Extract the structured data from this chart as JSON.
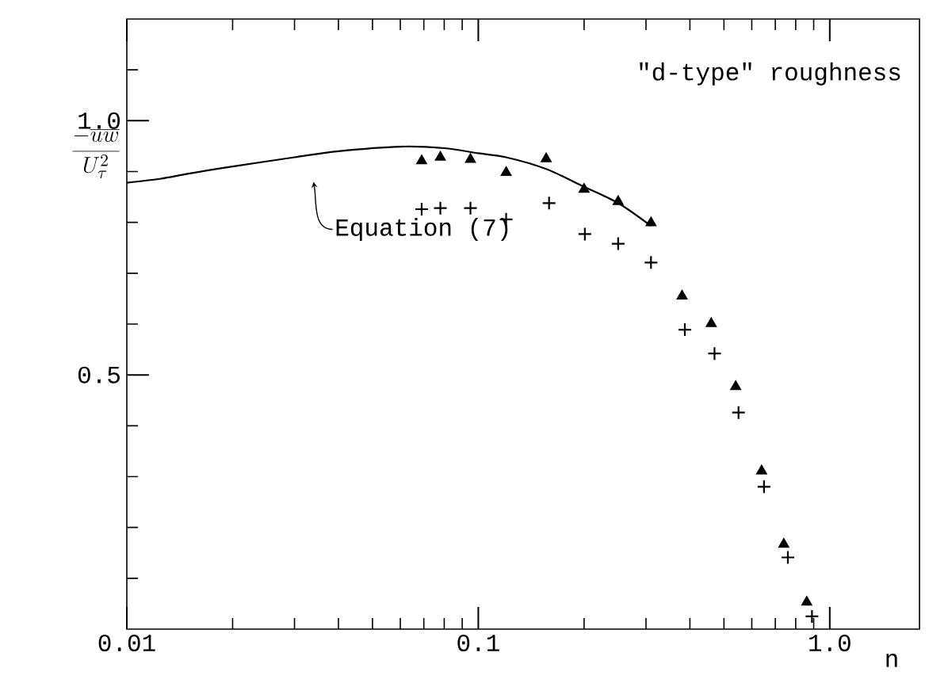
{
  "chart_data": {
    "type": "scatter",
    "xlabel": "n",
    "ylabel": "\\frac{-\\overline{uw}}{U_\\tau^2}",
    "log": "x",
    "xlim": [
      0.01,
      1.8
    ],
    "ylim": [
      0,
      1.2
    ],
    "xticks": [
      0.01,
      {
        "value": 0.02,
        "label": null
      },
      {
        "value": 0.03,
        "label": null
      },
      {
        "value": 0.04,
        "label": null
      },
      {
        "value": 0.05,
        "label": null
      },
      {
        "value": 0.06,
        "label": null
      },
      {
        "value": 0.07,
        "label": null
      },
      {
        "value": 0.08,
        "label": null
      },
      {
        "value": 0.09,
        "label": null
      },
      0.1,
      {
        "value": 0.2,
        "label": null
      },
      {
        "value": 0.3,
        "label": null
      },
      {
        "value": 0.4,
        "label": null
      },
      {
        "value": 0.5,
        "label": null
      },
      {
        "value": 0.6,
        "label": null
      },
      {
        "value": 0.7,
        "label": null
      },
      {
        "value": 0.8,
        "label": null
      },
      {
        "value": 0.9,
        "label": null
      },
      {
        "value": 1,
        "label": "1.0"
      }
    ],
    "yticks": [
      {
        "value": 0.1,
        "label": null
      },
      {
        "value": 0.2,
        "label": null
      },
      {
        "value": 0.3,
        "label": null
      },
      {
        "value": 0.4,
        "label": null
      },
      0.5,
      {
        "value": 0.6,
        "label": null
      },
      {
        "value": 0.7,
        "label": null
      },
      {
        "value": 0.8,
        "label": null
      },
      {
        "value": 0.9,
        "label": null
      },
      {
        "value": 1,
        "label": "1.0"
      },
      {
        "value": 1.1,
        "label": null
      }
    ],
    "annotations": [
      "\"d-type\" roughness"
    ],
    "series": [
      {
        "type": "line",
        "name": "Equation (7)",
        "color": "#000000",
        "marker": "none",
        "line_style": "solid",
        "x": [
          0.01,
          0.0125,
          0.015,
          0.02,
          0.03,
          0.04,
          0.06,
          0.08,
          0.1,
          0.12,
          0.156,
          0.2,
          0.25,
          0.31
        ],
        "values": [
          0.878,
          0.886,
          0.896,
          0.91,
          0.928,
          0.94,
          0.949,
          0.946,
          0.936,
          0.928,
          0.905,
          0.87,
          0.838,
          0.793
        ]
      },
      {
        "color": "#000000",
        "marker": "triangle",
        "x": [
          0.069,
          0.078,
          0.095,
          0.12,
          0.156,
          0.2,
          0.25,
          0.31,
          0.38,
          0.46,
          0.54,
          0.64,
          0.74,
          0.86
        ],
        "values": [
          0.921,
          0.928,
          0.924,
          0.898,
          0.925,
          0.865,
          0.841,
          0.799,
          0.655,
          0.601,
          0.477,
          0.311,
          0.167,
          0.053
        ]
      },
      {
        "color": "#000000",
        "marker": "cross",
        "x": [
          0.069,
          0.078,
          0.095,
          0.12,
          0.159,
          0.201,
          0.25,
          0.31,
          0.387,
          0.47,
          0.55,
          0.65,
          0.76,
          0.89
        ],
        "values": [
          0.826,
          0.828,
          0.828,
          0.806,
          0.838,
          0.777,
          0.758,
          0.721,
          0.589,
          0.542,
          0.426,
          0.28,
          0.141,
          0.025
        ]
      }
    ]
  }
}
